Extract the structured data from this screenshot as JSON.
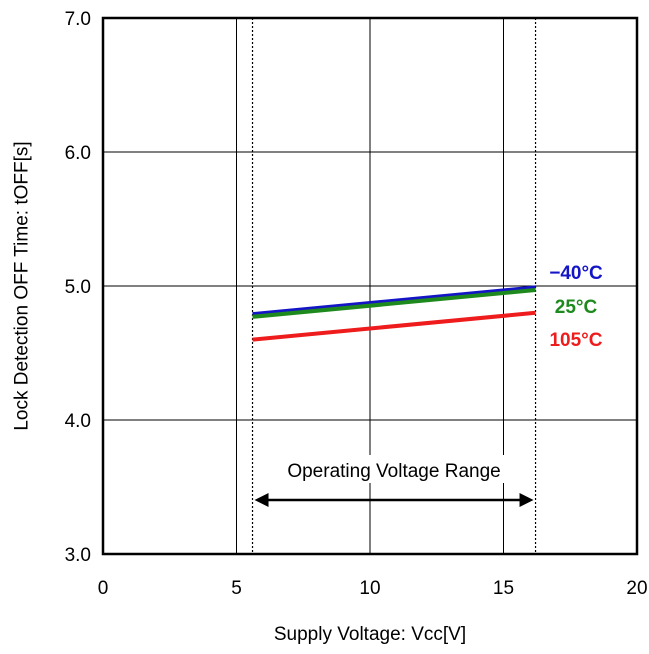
{
  "chart_data": {
    "type": "line",
    "xlabel": "Supply Voltage: Vcc[V]",
    "ylabel": "Lock Detection OFF Time: tOFF[s]",
    "xlim": [
      0,
      20
    ],
    "ylim": [
      3.0,
      7.0
    ],
    "x_ticks": [
      "0",
      "5",
      "10",
      "15",
      "20"
    ],
    "y_ticks": [
      "3.0",
      "4.0",
      "5.0",
      "6.0",
      "7.0"
    ],
    "grid": true,
    "series": [
      {
        "name": "−40°C",
        "color": "#1515c8",
        "x": [
          5.6,
          16.2
        ],
        "y": [
          4.79,
          4.99
        ]
      },
      {
        "name": "25°C",
        "color": "#1e8a1e",
        "x": [
          5.6,
          16.2
        ],
        "y": [
          4.77,
          4.97
        ]
      },
      {
        "name": "105°C",
        "color": "#ee1c1c",
        "x": [
          5.6,
          16.2
        ],
        "y": [
          4.6,
          4.8
        ]
      }
    ],
    "operating_range": {
      "label": "Operating Voltage Range",
      "from": 5.6,
      "to": 16.2
    }
  }
}
